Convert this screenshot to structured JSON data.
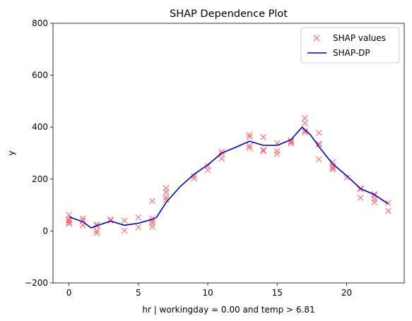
{
  "chart_data": {
    "type": "scatter",
    "title": "SHAP Dependence Plot",
    "xlabel": "hr | workingday = 0.00 and temp > 6.81",
    "ylabel": "y",
    "xlim": [
      -1.15,
      24.15
    ],
    "ylim": [
      -200,
      800
    ],
    "x_ticks": [
      0,
      5,
      10,
      15,
      20
    ],
    "y_ticks": [
      -200,
      0,
      200,
      400,
      600,
      800
    ],
    "grid": false,
    "legend_position": "top-right",
    "colors": {
      "scatter": "#ff5c5c",
      "line": "#0000cc"
    },
    "series": [
      {
        "name": "SHAP values",
        "kind": "scatter",
        "marker": "x",
        "points": [
          [
            0,
            62
          ],
          [
            0,
            45
          ],
          [
            0,
            40
          ],
          [
            0,
            33
          ],
          [
            0,
            28
          ],
          [
            1,
            48
          ],
          [
            1,
            40
          ],
          [
            1,
            22
          ],
          [
            2,
            25
          ],
          [
            2,
            20
          ],
          [
            2,
            0
          ],
          [
            2,
            -8
          ],
          [
            3,
            44
          ],
          [
            3,
            40
          ],
          [
            4,
            40
          ],
          [
            4,
            1
          ],
          [
            5,
            52
          ],
          [
            5,
            14
          ],
          [
            6,
            115
          ],
          [
            6,
            48
          ],
          [
            6,
            38
          ],
          [
            6,
            30
          ],
          [
            6,
            16
          ],
          [
            7,
            165
          ],
          [
            7,
            150
          ],
          [
            7,
            130
          ],
          [
            7,
            120
          ],
          [
            9,
            212
          ],
          [
            9,
            203
          ],
          [
            10,
            250
          ],
          [
            10,
            235
          ],
          [
            11,
            305
          ],
          [
            11,
            297
          ],
          [
            11,
            279
          ],
          [
            13,
            370
          ],
          [
            13,
            362
          ],
          [
            13,
            328
          ],
          [
            13,
            320
          ],
          [
            14,
            362
          ],
          [
            14,
            312
          ],
          [
            14,
            308
          ],
          [
            15,
            338
          ],
          [
            15,
            308
          ],
          [
            15,
            296
          ],
          [
            16,
            348
          ],
          [
            16,
            343
          ],
          [
            16,
            337
          ],
          [
            17,
            435
          ],
          [
            17,
            415
          ],
          [
            17,
            386
          ],
          [
            17,
            380
          ],
          [
            18,
            378
          ],
          [
            18,
            336
          ],
          [
            18,
            333
          ],
          [
            18,
            276
          ],
          [
            19,
            265
          ],
          [
            19,
            250
          ],
          [
            19,
            243
          ],
          [
            19,
            238
          ],
          [
            20,
            205
          ],
          [
            21,
            165
          ],
          [
            21,
            160
          ],
          [
            21,
            128
          ],
          [
            22,
            142
          ],
          [
            22,
            138
          ],
          [
            22,
            124
          ],
          [
            22,
            111
          ],
          [
            23,
            108
          ],
          [
            23,
            77
          ]
        ]
      },
      {
        "name": "SHAP-DP",
        "kind": "line",
        "points": [
          [
            0,
            55
          ],
          [
            1,
            35
          ],
          [
            1.6,
            12
          ],
          [
            2,
            20
          ],
          [
            3,
            38
          ],
          [
            4,
            22
          ],
          [
            5,
            30
          ],
          [
            6,
            45
          ],
          [
            6.3,
            52
          ],
          [
            7,
            110
          ],
          [
            8,
            170
          ],
          [
            9,
            218
          ],
          [
            10,
            255
          ],
          [
            11,
            300
          ],
          [
            12,
            322
          ],
          [
            13,
            346
          ],
          [
            14,
            330
          ],
          [
            15,
            330
          ],
          [
            16,
            352
          ],
          [
            16.8,
            400
          ],
          [
            17.4,
            370
          ],
          [
            18,
            325
          ],
          [
            19,
            258
          ],
          [
            20,
            213
          ],
          [
            21,
            163
          ],
          [
            22,
            140
          ],
          [
            23,
            104
          ]
        ]
      }
    ]
  }
}
